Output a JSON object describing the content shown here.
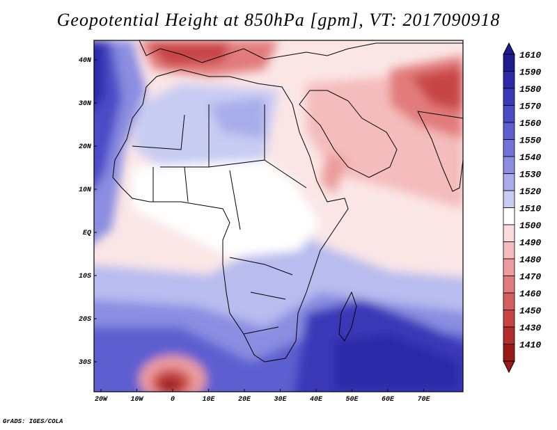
{
  "title": "Geopotential Height at 850hPa [gpm], VT: 2017090918",
  "credit": "GrADS: IGES/COLA",
  "lat_labels": [
    "40N",
    "30N",
    "20N",
    "10N",
    "EQ",
    "10S",
    "20S",
    "30S"
  ],
  "lon_labels": [
    "20W",
    "10W",
    "0",
    "10E",
    "20E",
    "30E",
    "40E",
    "50E",
    "60E",
    "70E"
  ],
  "colorbar": {
    "values": [
      "1610",
      "1590",
      "1580",
      "1570",
      "1560",
      "1550",
      "1540",
      "1530",
      "1520",
      "1510",
      "1500",
      "1490",
      "1480",
      "1470",
      "1460",
      "1450",
      "1430",
      "1410"
    ],
    "colors": [
      "#1e1b8c",
      "#2c2aa8",
      "#3a39b8",
      "#4b4bc6",
      "#5d5ed0",
      "#7273d8",
      "#8a8de1",
      "#a8acea",
      "#c8ccf3",
      "#ffffff",
      "#fadcdc",
      "#f4bcbc",
      "#ec9c9c",
      "#e27c7c",
      "#d65e5e",
      "#c84444",
      "#b42c2c",
      "#9a1a1a"
    ]
  },
  "colors": {
    "high_blue": "#2c2aa8",
    "low_red": "#b42c2c",
    "neutral": "#ffffff"
  }
}
